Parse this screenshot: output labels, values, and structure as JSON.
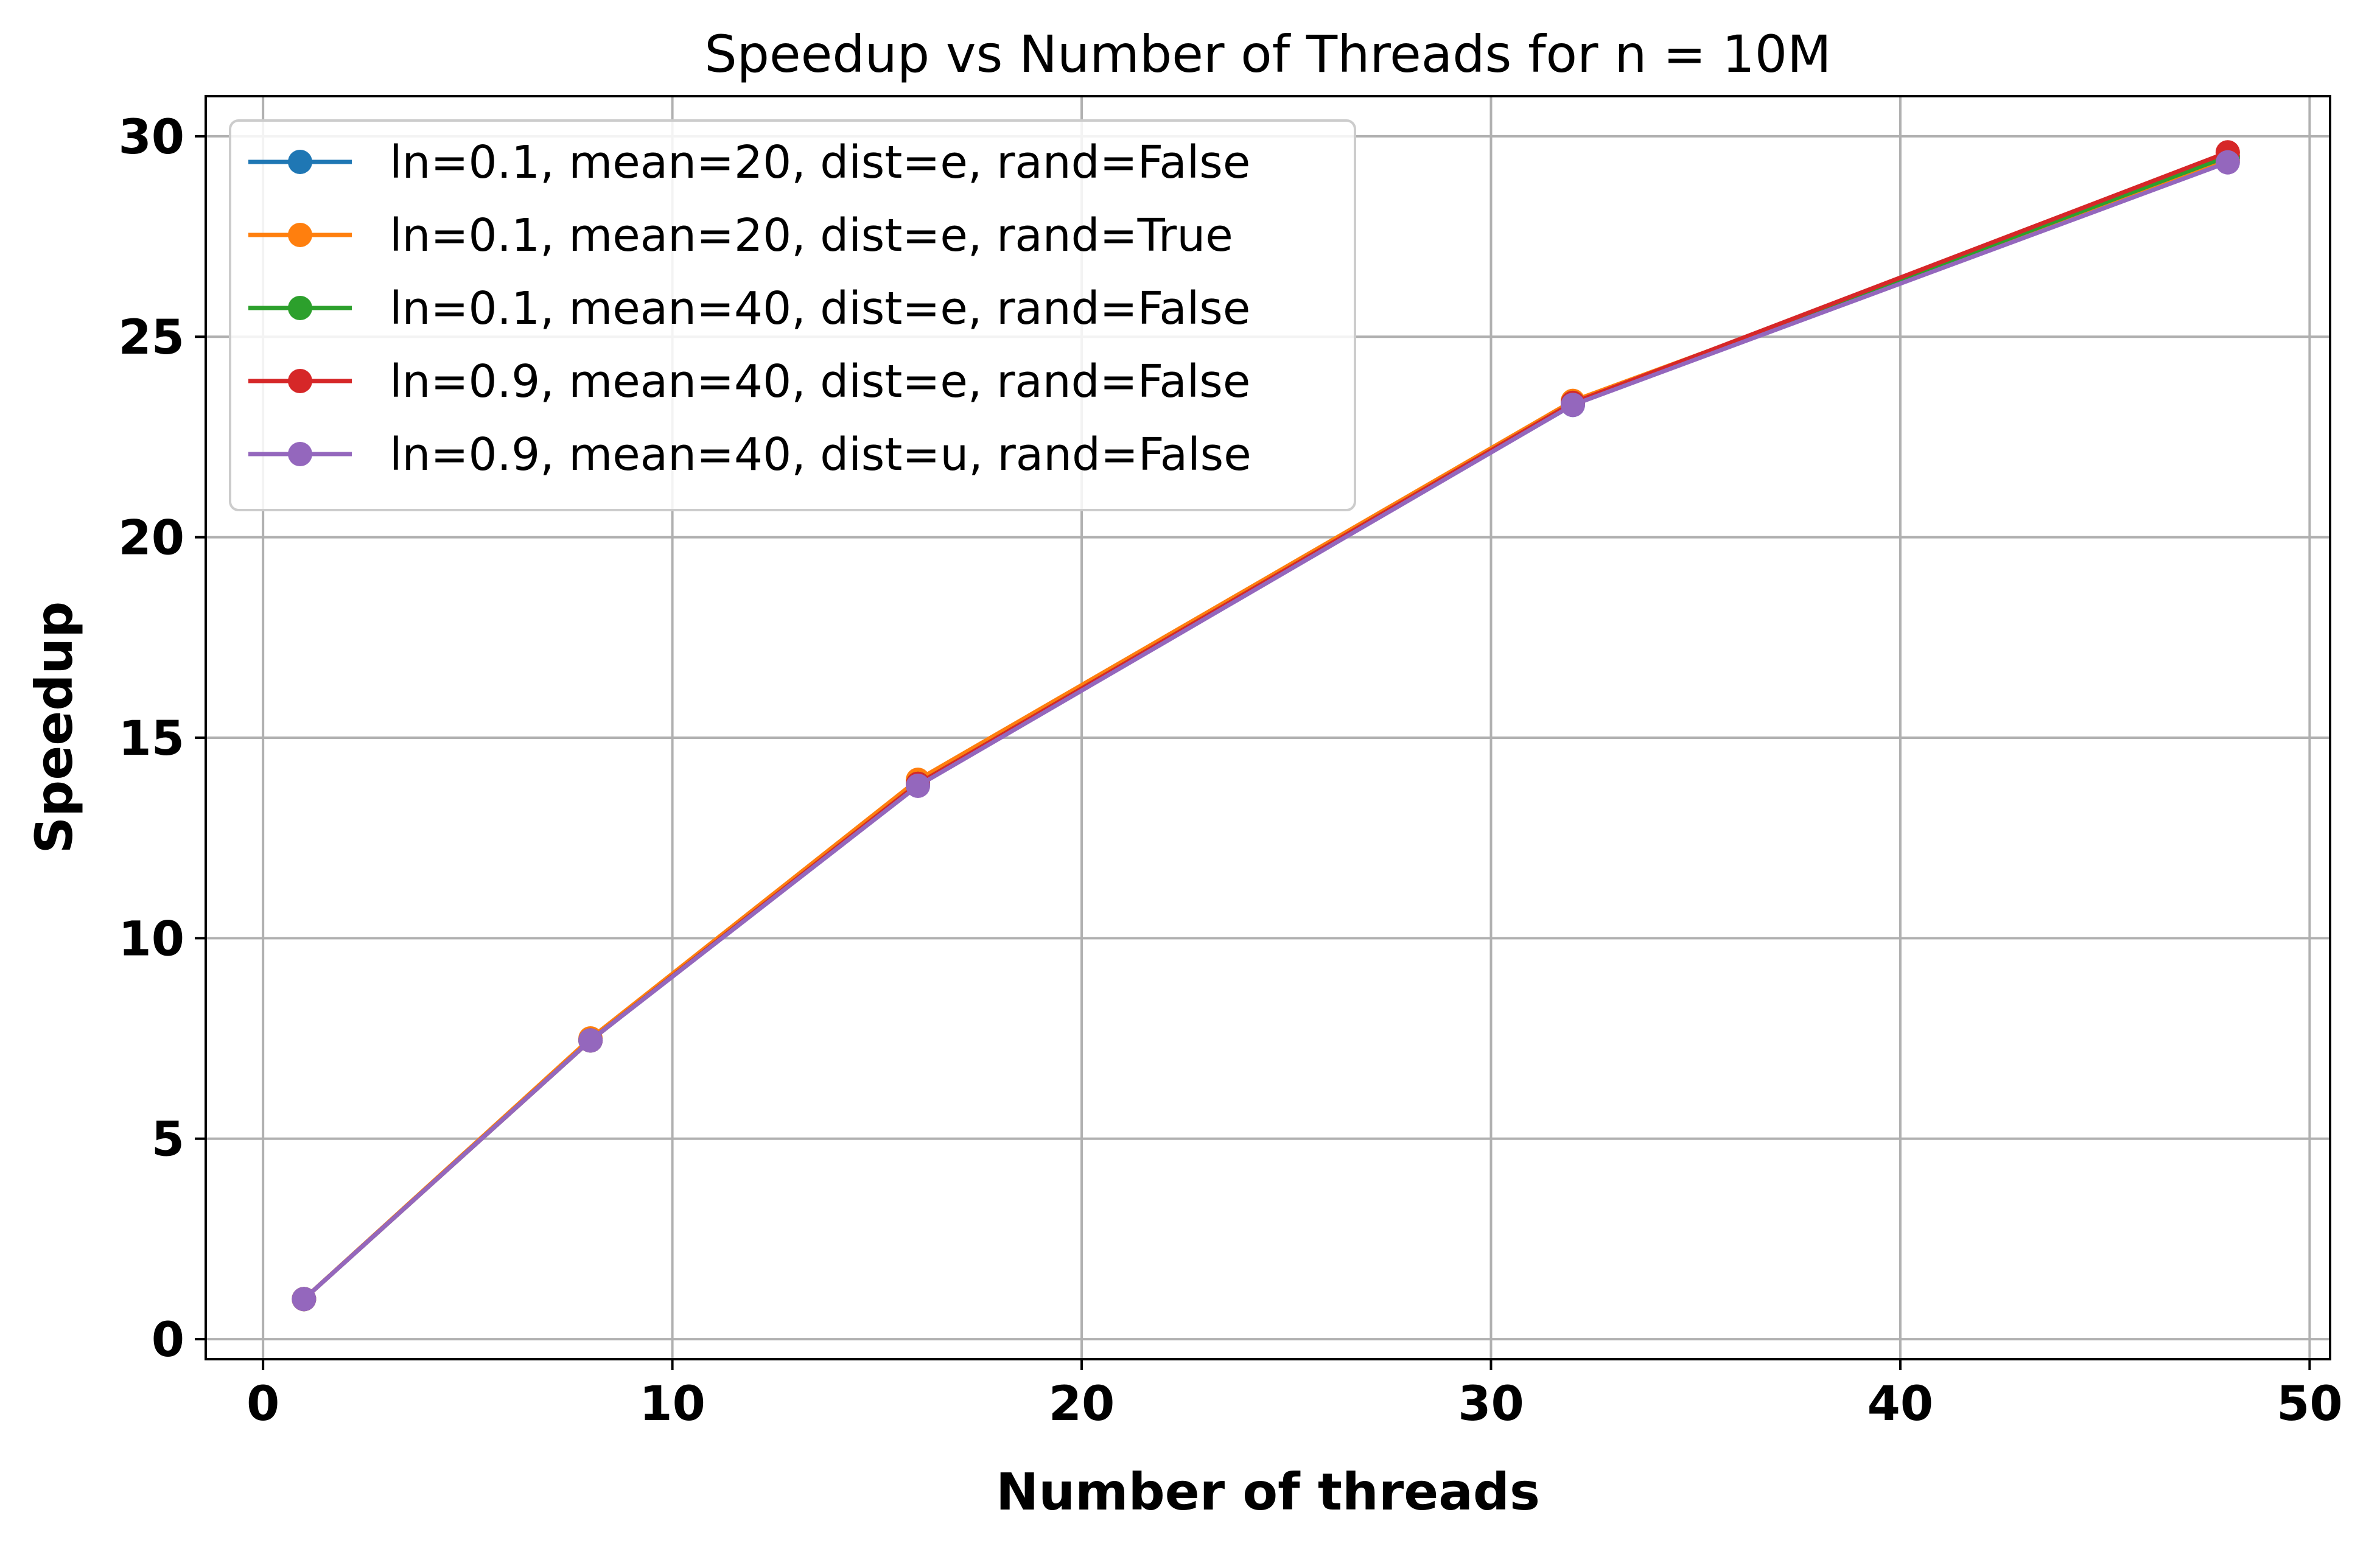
{
  "chart_data": {
    "type": "line",
    "title": "Speedup vs Number of Threads for n = 10M",
    "xlabel": "Number of threads",
    "ylabel": "Speedup",
    "xlim": [
      -1.4,
      50.5
    ],
    "ylim": [
      -0.5,
      31.0
    ],
    "xticks": [
      0,
      10,
      20,
      30,
      40,
      50
    ],
    "yticks": [
      0,
      5,
      10,
      15,
      20,
      25,
      30
    ],
    "xtick_labels": [
      "0",
      "10",
      "20",
      "30",
      "40",
      "50"
    ],
    "ytick_labels": [
      "0",
      "5",
      "10",
      "15",
      "20",
      "25",
      "30"
    ],
    "grid": true,
    "legend_position": "top-left",
    "x": [
      1,
      8,
      16,
      32,
      48
    ],
    "series": [
      {
        "name": "ln=0.1, mean=20, dist=e, rand=False",
        "color": "#1f77b4",
        "values": [
          1.0,
          7.45,
          13.85,
          23.3,
          29.45
        ]
      },
      {
        "name": "ln=0.1, mean=20, dist=e, rand=True",
        "color": "#ff7f0e",
        "values": [
          1.0,
          7.5,
          13.95,
          23.4,
          29.4
        ]
      },
      {
        "name": "ln=0.1, mean=40, dist=e, rand=False",
        "color": "#2ca02c",
        "values": [
          1.0,
          7.45,
          13.85,
          23.35,
          29.5
        ]
      },
      {
        "name": "ln=0.9, mean=40, dist=e, rand=False",
        "color": "#d62728",
        "values": [
          1.0,
          7.45,
          13.85,
          23.35,
          29.6
        ]
      },
      {
        "name": "ln=0.9, mean=40, dist=u, rand=False",
        "color": "#9467bd",
        "values": [
          1.0,
          7.45,
          13.8,
          23.3,
          29.35
        ]
      }
    ]
  }
}
